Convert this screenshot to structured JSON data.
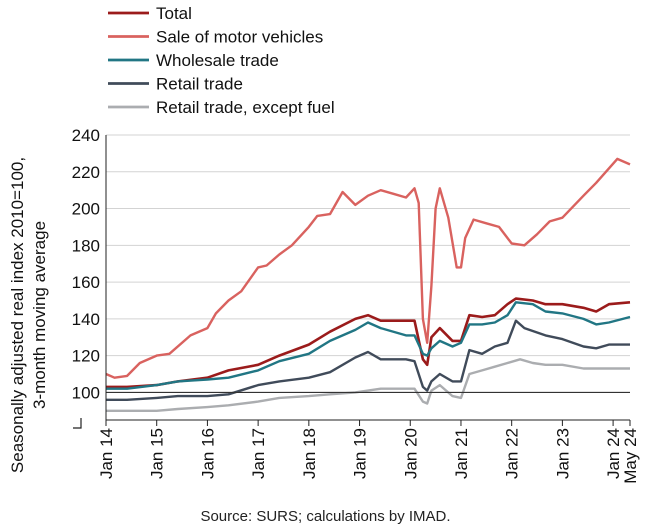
{
  "chart_data": {
    "type": "line",
    "title": "",
    "ylabel_lines": [
      "Seasonally adjusted real index 2010=100,",
      "3-month moving average"
    ],
    "xlabel": "",
    "ylim": [
      85,
      240
    ],
    "yticks": [
      100,
      120,
      140,
      160,
      180,
      200,
      220,
      240
    ],
    "x_start": "2014-01",
    "x_end": "2024-05",
    "xtick_labels": [
      "Jan 14",
      "Jan 15",
      "Jan 16",
      "Jan 17",
      "Jan 18",
      "Jan 19",
      "Jan 20",
      "Jan 21",
      "Jan 22",
      "Jan 23",
      "Jan 24",
      "May 24"
    ],
    "xtick_dates": [
      "2014-01",
      "2015-01",
      "2016-01",
      "2017-01",
      "2018-01",
      "2019-01",
      "2020-01",
      "2021-01",
      "2022-01",
      "2023-01",
      "2024-01",
      "2024-05"
    ],
    "reference_line": 100,
    "legend_position": "top-left",
    "series": [
      {
        "name": "Total",
        "color": "#9B1B1B",
        "width": 2.6,
        "points": [
          [
            "2014-01",
            103
          ],
          [
            "2014-06",
            103
          ],
          [
            "2015-01",
            104
          ],
          [
            "2015-06",
            106
          ],
          [
            "2016-01",
            108
          ],
          [
            "2016-06",
            112
          ],
          [
            "2017-01",
            115
          ],
          [
            "2017-06",
            120
          ],
          [
            "2018-01",
            126
          ],
          [
            "2018-06",
            133
          ],
          [
            "2018-12",
            140
          ],
          [
            "2019-03",
            142
          ],
          [
            "2019-06",
            139
          ],
          [
            "2019-12",
            139
          ],
          [
            "2020-02",
            139
          ],
          [
            "2020-04",
            118
          ],
          [
            "2020-05",
            115
          ],
          [
            "2020-06",
            130
          ],
          [
            "2020-08",
            135
          ],
          [
            "2020-11",
            128
          ],
          [
            "2021-01",
            128
          ],
          [
            "2021-03",
            142
          ],
          [
            "2021-06",
            141
          ],
          [
            "2021-09",
            142
          ],
          [
            "2021-12",
            148
          ],
          [
            "2022-02",
            151
          ],
          [
            "2022-06",
            150
          ],
          [
            "2022-09",
            148
          ],
          [
            "2023-01",
            148
          ],
          [
            "2023-06",
            146
          ],
          [
            "2023-09",
            144
          ],
          [
            "2023-12",
            148
          ],
          [
            "2024-05",
            149
          ]
        ]
      },
      {
        "name": "Sale of motor vehicles",
        "color": "#D9625F",
        "width": 2.4,
        "points": [
          [
            "2014-01",
            110
          ],
          [
            "2014-03",
            108
          ],
          [
            "2014-06",
            109
          ],
          [
            "2014-09",
            116
          ],
          [
            "2015-01",
            120
          ],
          [
            "2015-04",
            121
          ],
          [
            "2015-09",
            131
          ],
          [
            "2016-01",
            135
          ],
          [
            "2016-03",
            143
          ],
          [
            "2016-06",
            150
          ],
          [
            "2016-09",
            155
          ],
          [
            "2017-01",
            168
          ],
          [
            "2017-03",
            169
          ],
          [
            "2017-06",
            175
          ],
          [
            "2017-09",
            180
          ],
          [
            "2018-01",
            190
          ],
          [
            "2018-03",
            196
          ],
          [
            "2018-06",
            197
          ],
          [
            "2018-09",
            209
          ],
          [
            "2018-12",
            202
          ],
          [
            "2019-03",
            207
          ],
          [
            "2019-06",
            210
          ],
          [
            "2019-09",
            208
          ],
          [
            "2019-12",
            206
          ],
          [
            "2020-02",
            211
          ],
          [
            "2020-03",
            203
          ],
          [
            "2020-04",
            140
          ],
          [
            "2020-05",
            127
          ],
          [
            "2020-06",
            158
          ],
          [
            "2020-07",
            200
          ],
          [
            "2020-08",
            211
          ],
          [
            "2020-10",
            195
          ],
          [
            "2020-12",
            168
          ],
          [
            "2021-01",
            168
          ],
          [
            "2021-02",
            184
          ],
          [
            "2021-04",
            194
          ],
          [
            "2021-07",
            192
          ],
          [
            "2021-10",
            190
          ],
          [
            "2022-01",
            181
          ],
          [
            "2022-04",
            180
          ],
          [
            "2022-07",
            186
          ],
          [
            "2022-10",
            193
          ],
          [
            "2023-01",
            195
          ],
          [
            "2023-06",
            207
          ],
          [
            "2023-09",
            214
          ],
          [
            "2024-02",
            227
          ],
          [
            "2024-05",
            224
          ]
        ]
      },
      {
        "name": "Wholesale trade",
        "color": "#217684",
        "width": 2.4,
        "points": [
          [
            "2014-01",
            102
          ],
          [
            "2014-06",
            102
          ],
          [
            "2015-01",
            104
          ],
          [
            "2015-06",
            106
          ],
          [
            "2016-01",
            107
          ],
          [
            "2016-06",
            108
          ],
          [
            "2017-01",
            112
          ],
          [
            "2017-06",
            117
          ],
          [
            "2018-01",
            121
          ],
          [
            "2018-06",
            128
          ],
          [
            "2018-12",
            134
          ],
          [
            "2019-03",
            138
          ],
          [
            "2019-06",
            135
          ],
          [
            "2019-12",
            131
          ],
          [
            "2020-02",
            131
          ],
          [
            "2020-04",
            121
          ],
          [
            "2020-05",
            120
          ],
          [
            "2020-06",
            124
          ],
          [
            "2020-08",
            128
          ],
          [
            "2020-11",
            125
          ],
          [
            "2021-01",
            127
          ],
          [
            "2021-03",
            137
          ],
          [
            "2021-06",
            137
          ],
          [
            "2021-09",
            138
          ],
          [
            "2021-12",
            142
          ],
          [
            "2022-02",
            149
          ],
          [
            "2022-06",
            148
          ],
          [
            "2022-09",
            144
          ],
          [
            "2023-01",
            143
          ],
          [
            "2023-06",
            140
          ],
          [
            "2023-09",
            137
          ],
          [
            "2023-12",
            138
          ],
          [
            "2024-05",
            141
          ]
        ]
      },
      {
        "name": "Retail trade",
        "color": "#404B5A",
        "width": 2.4,
        "points": [
          [
            "2014-01",
            96
          ],
          [
            "2014-06",
            96
          ],
          [
            "2015-01",
            97
          ],
          [
            "2015-06",
            98
          ],
          [
            "2016-01",
            98
          ],
          [
            "2016-06",
            99
          ],
          [
            "2017-01",
            104
          ],
          [
            "2017-06",
            106
          ],
          [
            "2018-01",
            108
          ],
          [
            "2018-06",
            111
          ],
          [
            "2018-12",
            119
          ],
          [
            "2019-03",
            122
          ],
          [
            "2019-06",
            118
          ],
          [
            "2019-12",
            118
          ],
          [
            "2020-02",
            117
          ],
          [
            "2020-04",
            103
          ],
          [
            "2020-05",
            101
          ],
          [
            "2020-06",
            106
          ],
          [
            "2020-08",
            110
          ],
          [
            "2020-11",
            106
          ],
          [
            "2021-01",
            106
          ],
          [
            "2021-03",
            123
          ],
          [
            "2021-06",
            121
          ],
          [
            "2021-09",
            125
          ],
          [
            "2021-12",
            127
          ],
          [
            "2022-02",
            139
          ],
          [
            "2022-04",
            135
          ],
          [
            "2022-09",
            131
          ],
          [
            "2023-01",
            129
          ],
          [
            "2023-06",
            125
          ],
          [
            "2023-09",
            124
          ],
          [
            "2023-12",
            126
          ],
          [
            "2024-05",
            126
          ]
        ]
      },
      {
        "name": "Retail trade, except fuel",
        "color": "#ABADB0",
        "width": 2.4,
        "points": [
          [
            "2014-01",
            90
          ],
          [
            "2014-06",
            90
          ],
          [
            "2015-01",
            90
          ],
          [
            "2015-06",
            91
          ],
          [
            "2016-01",
            92
          ],
          [
            "2016-06",
            93
          ],
          [
            "2017-01",
            95
          ],
          [
            "2017-06",
            97
          ],
          [
            "2018-01",
            98
          ],
          [
            "2018-06",
            99
          ],
          [
            "2018-12",
            100
          ],
          [
            "2019-03",
            101
          ],
          [
            "2019-06",
            102
          ],
          [
            "2019-12",
            102
          ],
          [
            "2020-02",
            102
          ],
          [
            "2020-04",
            95
          ],
          [
            "2020-05",
            94
          ],
          [
            "2020-06",
            101
          ],
          [
            "2020-08",
            104
          ],
          [
            "2020-11",
            98
          ],
          [
            "2021-01",
            97
          ],
          [
            "2021-03",
            110
          ],
          [
            "2021-06",
            112
          ],
          [
            "2021-09",
            114
          ],
          [
            "2021-12",
            116
          ],
          [
            "2022-03",
            118
          ],
          [
            "2022-06",
            116
          ],
          [
            "2022-09",
            115
          ],
          [
            "2023-01",
            115
          ],
          [
            "2023-06",
            113
          ],
          [
            "2023-09",
            113
          ],
          [
            "2023-12",
            113
          ],
          [
            "2024-05",
            113
          ]
        ]
      }
    ]
  },
  "source": "Source: SURS; calculations by IMAD."
}
